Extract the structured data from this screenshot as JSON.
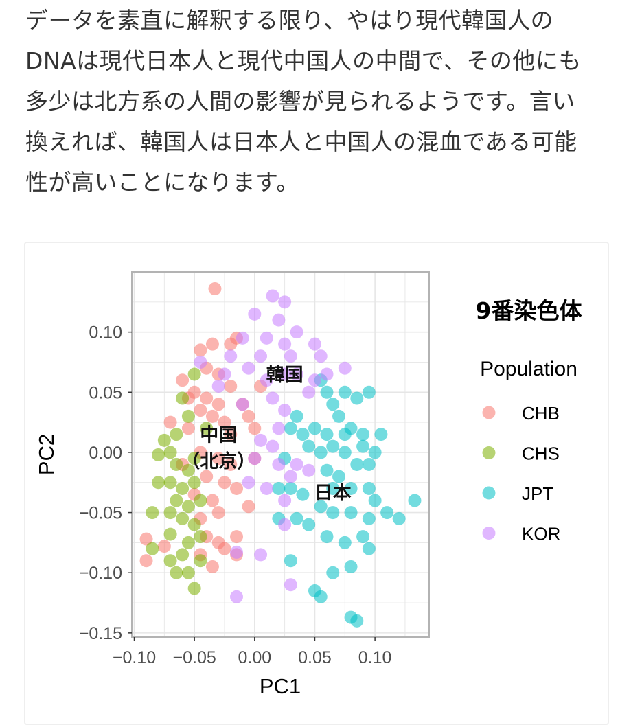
{
  "paragraph": {
    "lines": [
      "データを素直に解釈する限り、やはり現代韓国人の",
      "DNAは現代日本人と現代中国人の中間で、その他にも",
      "多少は北方系の人間の影響が見られるようです。言い",
      "換えれば、韓国人は日本人と中国人の混血である可能",
      "性が高いことになります。"
    ]
  },
  "chart_data": {
    "type": "scatter",
    "title": "9番染色体",
    "xlabel": "PC1",
    "ylabel": "PC2",
    "xlim": [
      -0.102,
      0.145
    ],
    "ylim": [
      -0.1535,
      0.15
    ],
    "xticks": [
      -0.1,
      -0.05,
      0.0,
      0.05,
      0.1
    ],
    "xtick_labels": [
      "−0.10",
      "−0.05",
      "0.00",
      "0.05",
      "0.10"
    ],
    "yticks": [
      0.1,
      0.05,
      0.0,
      -0.05,
      -0.1,
      -0.15
    ],
    "ytick_labels": [
      "0.10",
      "0.05",
      "0.00",
      "−0.05",
      "−0.10",
      "−0.15"
    ],
    "grid": true,
    "legend": {
      "title": "Population",
      "placement": "right"
    },
    "annotations": [
      {
        "text": "韓国",
        "x": 0.025,
        "y": 0.065
      },
      {
        "text": "中国",
        "x": -0.03,
        "y": 0.015
      },
      {
        "text": "（北京）",
        "x": -0.03,
        "y": -0.007
      },
      {
        "text": "日本",
        "x": 0.065,
        "y": -0.033
      }
    ],
    "series": [
      {
        "name": "CHB",
        "color": "#F8766D",
        "points": [
          [
            -0.033,
            0.136
          ],
          [
            -0.045,
            0.085
          ],
          [
            -0.035,
            0.09
          ],
          [
            -0.02,
            0.09
          ],
          [
            -0.015,
            0.095
          ],
          [
            -0.06,
            0.06
          ],
          [
            -0.04,
            0.07
          ],
          [
            -0.03,
            0.065
          ],
          [
            -0.02,
            0.055
          ],
          [
            -0.05,
            0.05
          ],
          [
            -0.04,
            0.045
          ],
          [
            -0.03,
            0.04
          ],
          [
            -0.045,
            0.035
          ],
          [
            -0.035,
            0.03
          ],
          [
            -0.025,
            0.025
          ],
          [
            -0.01,
            0.04
          ],
          [
            -0.005,
            0.03
          ],
          [
            -0.07,
            0.025
          ],
          [
            -0.055,
            0.02
          ],
          [
            -0.02,
            0.015
          ],
          [
            -0.045,
            0.0
          ],
          [
            -0.03,
            -0.005
          ],
          [
            -0.02,
            -0.01
          ],
          [
            -0.06,
            -0.01
          ],
          [
            -0.04,
            -0.02
          ],
          [
            -0.025,
            -0.025
          ],
          [
            -0.015,
            -0.03
          ],
          [
            -0.05,
            -0.035
          ],
          [
            -0.035,
            -0.04
          ],
          [
            -0.03,
            -0.05
          ],
          [
            -0.045,
            -0.055
          ],
          [
            -0.005,
            -0.045
          ],
          [
            -0.04,
            -0.07
          ],
          [
            -0.03,
            -0.075
          ],
          [
            -0.015,
            -0.07
          ],
          [
            -0.09,
            -0.072
          ],
          [
            -0.09,
            -0.09
          ],
          [
            -0.075,
            -0.078
          ],
          [
            -0.025,
            -0.08
          ],
          [
            -0.015,
            -0.085
          ],
          [
            -0.035,
            -0.095
          ],
          [
            -0.045,
            -0.085
          ],
          [
            0.0,
            -0.005
          ],
          [
            0.0,
            0.02
          ],
          [
            -0.055,
            0.045
          ],
          [
            0.005,
            0.055
          ]
        ]
      },
      {
        "name": "CHS",
        "color": "#7CAE00",
        "points": [
          [
            -0.05,
            0.065
          ],
          [
            -0.06,
            0.045
          ],
          [
            -0.055,
            0.03
          ],
          [
            -0.065,
            0.015
          ],
          [
            -0.075,
            0.01
          ],
          [
            -0.07,
            0.0
          ],
          [
            -0.08,
            -0.002
          ],
          [
            -0.065,
            -0.01
          ],
          [
            -0.055,
            -0.015
          ],
          [
            -0.07,
            -0.025
          ],
          [
            -0.06,
            -0.03
          ],
          [
            -0.05,
            -0.025
          ],
          [
            -0.065,
            -0.04
          ],
          [
            -0.055,
            -0.045
          ],
          [
            -0.045,
            -0.04
          ],
          [
            -0.07,
            -0.05
          ],
          [
            -0.06,
            -0.055
          ],
          [
            -0.085,
            -0.05
          ],
          [
            -0.05,
            -0.06
          ],
          [
            -0.07,
            -0.068
          ],
          [
            -0.055,
            -0.075
          ],
          [
            -0.045,
            -0.07
          ],
          [
            -0.085,
            -0.08
          ],
          [
            -0.06,
            -0.085
          ],
          [
            -0.045,
            -0.09
          ],
          [
            -0.07,
            -0.09
          ],
          [
            -0.065,
            -0.1
          ],
          [
            -0.055,
            -0.1
          ],
          [
            -0.05,
            -0.113
          ],
          [
            -0.08,
            -0.025
          ],
          [
            -0.05,
            -0.005
          ],
          [
            -0.04,
            0.02
          ]
        ]
      },
      {
        "name": "JPT",
        "color": "#00BFC4",
        "points": [
          [
            0.055,
            0.06
          ],
          [
            0.06,
            0.05
          ],
          [
            0.075,
            0.05
          ],
          [
            0.085,
            0.045
          ],
          [
            0.095,
            0.05
          ],
          [
            0.065,
            0.04
          ],
          [
            0.07,
            0.03
          ],
          [
            0.035,
            0.03
          ],
          [
            0.03,
            0.02
          ],
          [
            0.04,
            0.015
          ],
          [
            0.05,
            0.02
          ],
          [
            0.06,
            0.015
          ],
          [
            0.075,
            0.015
          ],
          [
            0.08,
            0.02
          ],
          [
            0.045,
            0.005
          ],
          [
            0.055,
            0.0
          ],
          [
            0.065,
            0.005
          ],
          [
            0.075,
            0.0
          ],
          [
            0.09,
            0.005
          ],
          [
            0.1,
            0.0
          ],
          [
            0.105,
            0.015
          ],
          [
            0.085,
            -0.01
          ],
          [
            0.095,
            -0.01
          ],
          [
            0.025,
            -0.005
          ],
          [
            0.06,
            -0.015
          ],
          [
            0.07,
            -0.02
          ],
          [
            0.03,
            -0.03
          ],
          [
            0.04,
            -0.035
          ],
          [
            0.065,
            -0.03
          ],
          [
            0.08,
            -0.03
          ],
          [
            0.095,
            -0.03
          ],
          [
            0.1,
            -0.04
          ],
          [
            0.055,
            -0.045
          ],
          [
            0.065,
            -0.05
          ],
          [
            0.08,
            -0.05
          ],
          [
            0.095,
            -0.055
          ],
          [
            0.11,
            -0.05
          ],
          [
            0.12,
            -0.055
          ],
          [
            0.133,
            -0.04
          ],
          [
            0.02,
            -0.055
          ],
          [
            0.035,
            -0.055
          ],
          [
            0.045,
            -0.06
          ],
          [
            0.06,
            -0.07
          ],
          [
            0.075,
            -0.075
          ],
          [
            0.09,
            -0.07
          ],
          [
            0.095,
            -0.08
          ],
          [
            0.03,
            -0.09
          ],
          [
            0.065,
            -0.1
          ],
          [
            0.08,
            -0.095
          ],
          [
            0.05,
            -0.115
          ],
          [
            0.055,
            -0.12
          ],
          [
            0.08,
            -0.137
          ],
          [
            0.085,
            -0.14
          ],
          [
            0.02,
            -0.03
          ],
          [
            0.09,
            0.015
          ]
        ]
      },
      {
        "name": "KOR",
        "color": "#C77CFF",
        "points": [
          [
            0.015,
            0.13
          ],
          [
            0.025,
            0.125
          ],
          [
            0.0,
            0.115
          ],
          [
            0.02,
            0.11
          ],
          [
            0.035,
            0.1
          ],
          [
            0.01,
            0.095
          ],
          [
            0.025,
            0.09
          ],
          [
            -0.01,
            0.095
          ],
          [
            0.005,
            0.08
          ],
          [
            0.03,
            0.08
          ],
          [
            0.05,
            0.09
          ],
          [
            0.055,
            0.08
          ],
          [
            -0.02,
            0.08
          ],
          [
            -0.005,
            0.07
          ],
          [
            0.01,
            0.06
          ],
          [
            0.025,
            0.065
          ],
          [
            0.035,
            0.065
          ],
          [
            0.06,
            0.065
          ],
          [
            0.075,
            0.07
          ],
          [
            0.05,
            0.06
          ],
          [
            0.045,
            0.05
          ],
          [
            -0.01,
            0.04
          ],
          [
            0.015,
            0.045
          ],
          [
            0.025,
            0.035
          ],
          [
            0.02,
            0.02
          ],
          [
            0.005,
            0.01
          ],
          [
            0.015,
            0.005
          ],
          [
            0.0,
            -0.005
          ],
          [
            0.02,
            -0.01
          ],
          [
            0.03,
            -0.02
          ],
          [
            -0.005,
            -0.025
          ],
          [
            0.01,
            -0.03
          ],
          [
            0.025,
            -0.04
          ],
          [
            0.035,
            -0.01
          ],
          [
            0.045,
            -0.015
          ],
          [
            -0.045,
            0.075
          ],
          [
            -0.03,
            0.055
          ],
          [
            -0.015,
            -0.083
          ],
          [
            0.005,
            -0.085
          ],
          [
            0.03,
            -0.11
          ],
          [
            -0.015,
            -0.12
          ],
          [
            0.025,
            -0.06
          ],
          [
            -0.025,
            0.065
          ]
        ]
      }
    ]
  }
}
